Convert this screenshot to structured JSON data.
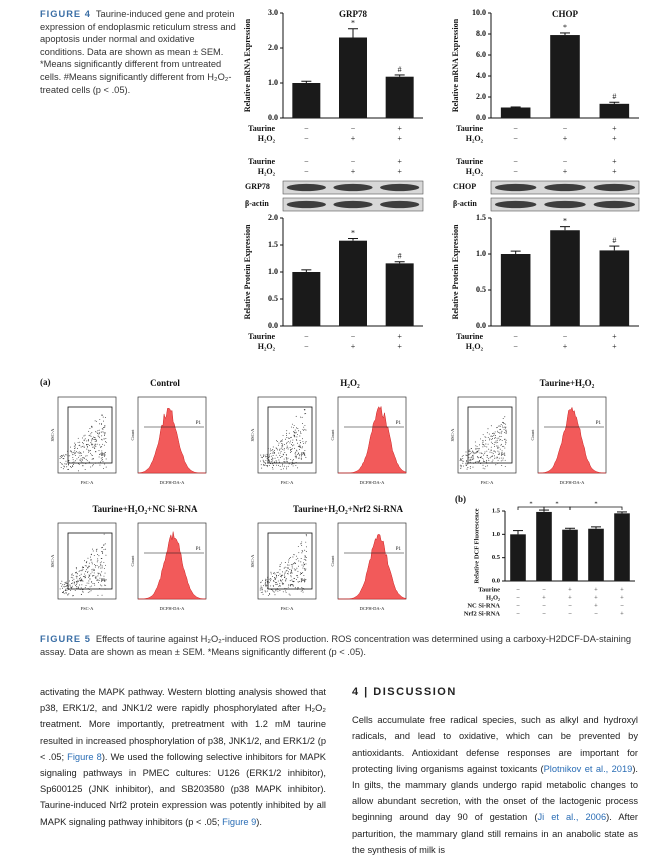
{
  "figure4": {
    "label": "FIGURE 4",
    "caption": "Taurine-induced gene and protein expression of endoplasmic reticulum stress and apoptosis under normal and oxidative conditions. Data are shown as mean ± SEM. *Means significantly different from untreated cells. #Means significantly different from H₂O₂-treated cells (p < .05).",
    "charts": [
      {
        "type": "bar",
        "title": "GRP78",
        "ylabel": "Relative mRNA Expression",
        "ylim": [
          0,
          3
        ],
        "yticks": [
          {
            "value": 0,
            "label": "0.0"
          },
          {
            "value": 1,
            "label": "1.0"
          },
          {
            "value": 2,
            "label": "2.0"
          },
          {
            "value": 3,
            "label": "3.0"
          }
        ],
        "values": [
          1.0,
          2.3,
          1.18
        ],
        "errors": [
          0.05,
          0.25,
          0.05
        ],
        "color": "#1a1a1a",
        "annotations": [
          {
            "bar": 1,
            "text": "*"
          },
          {
            "bar": 2,
            "text": "#"
          }
        ],
        "conditions": [
          {
            "name": "Taurine",
            "values": [
              "−",
              "−",
              "+"
            ]
          },
          {
            "name": "H₂O₂",
            "values": [
              "−",
              "+",
              "+"
            ]
          }
        ]
      },
      {
        "type": "bar",
        "title": "CHOP",
        "ylabel": "Relative mRNA Expression",
        "ylim": [
          0,
          10
        ],
        "yticks": [
          {
            "value": 0,
            "label": "0.0"
          },
          {
            "value": 2,
            "label": "2.0"
          },
          {
            "value": 4,
            "label": "4.0"
          },
          {
            "value": 6,
            "label": "6.0"
          },
          {
            "value": 8,
            "label": "8.0"
          },
          {
            "value": 10,
            "label": "10.0"
          }
        ],
        "values": [
          1.0,
          7.9,
          1.35
        ],
        "errors": [
          0.05,
          0.2,
          0.15
        ],
        "color": "#1a1a1a",
        "annotations": [
          {
            "bar": 1,
            "text": "*"
          },
          {
            "bar": 2,
            "text": "#"
          }
        ],
        "conditions": [
          {
            "name": "Taurine",
            "values": [
              "−",
              "−",
              "+"
            ]
          },
          {
            "name": "H₂O₂",
            "values": [
              "−",
              "+",
              "+"
            ]
          }
        ]
      },
      {
        "type": "bar",
        "ylabel": "Relative Protein Expression",
        "ylim": [
          0,
          2
        ],
        "yticks": [
          {
            "value": 0,
            "label": "0.0"
          },
          {
            "value": 0.5,
            "label": "0.5"
          },
          {
            "value": 1,
            "label": "1.0"
          },
          {
            "value": 1.5,
            "label": "1.5"
          },
          {
            "value": 2,
            "label": "2.0"
          }
        ],
        "values": [
          1.0,
          1.58,
          1.16
        ],
        "errors": [
          0.04,
          0.04,
          0.03
        ],
        "color": "#1a1a1a",
        "annotations": [
          {
            "bar": 1,
            "text": "*"
          },
          {
            "bar": 2,
            "text": "#"
          }
        ],
        "conditions": [
          {
            "name": "Taurine",
            "values": [
              "−",
              "−",
              "+"
            ]
          },
          {
            "name": "H₂O₂",
            "values": [
              "−",
              "+",
              "+"
            ]
          }
        ]
      },
      {
        "type": "bar",
        "ylabel": "Relative Protein Expression",
        "ylim": [
          0,
          1.5
        ],
        "yticks": [
          {
            "value": 0,
            "label": "0.0"
          },
          {
            "value": 0.5,
            "label": "0.5"
          },
          {
            "value": 1,
            "label": "1.0"
          },
          {
            "value": 1.5,
            "label": "1.5"
          }
        ],
        "values": [
          1.0,
          1.33,
          1.05
        ],
        "errors": [
          0.04,
          0.05,
          0.06
        ],
        "color": "#1a1a1a",
        "annotations": [
          {
            "bar": 1,
            "text": "*"
          },
          {
            "bar": 2,
            "text": "#"
          }
        ],
        "conditions": [
          {
            "name": "Taurine",
            "values": [
              "−",
              "−",
              "+"
            ]
          },
          {
            "name": "H₂O₂",
            "values": [
              "−",
              "+",
              "+"
            ]
          }
        ]
      }
    ],
    "blots": [
      {
        "conditions": [
          {
            "name": "Taurine",
            "values": [
              "−",
              "−",
              "+"
            ]
          },
          {
            "name": "H₂O₂",
            "values": [
              "−",
              "+",
              "+"
            ]
          }
        ],
        "bands": [
          "GRP78",
          "β-actin"
        ]
      },
      {
        "conditions": [
          {
            "name": "Taurine",
            "values": [
              "−",
              "−",
              "+"
            ]
          },
          {
            "name": "H₂O₂",
            "values": [
              "−",
              "+",
              "+"
            ]
          }
        ],
        "bands": [
          "CHOP",
          "β-actin"
        ]
      }
    ]
  },
  "figure5": {
    "label": "FIGURE 5",
    "caption": "Effects of taurine against H₂O₂-induced ROS production. ROS concentration was determined using a carboxy-H2DCF-DA-staining assay. Data are shown as mean ± SEM. *Means significantly different (p < .05).",
    "panel_a": "(a)",
    "panel_b": "(b)",
    "flow": {
      "scatter_x": "FSC-A",
      "scatter_y": "SSC-A",
      "gate": "P1",
      "hist_x": "DCFH-DA-A",
      "hist_y": "Count",
      "panels": [
        "Control",
        "H₂O₂",
        "Taurine+H₂O₂",
        "Taurine+H₂O₂+NC Si-RNA",
        "Taurine+H₂O₂+Nrf2 Si-RNA"
      ]
    },
    "chart": {
      "type": "bar",
      "ylabel": "Relative DCF Fluorescence",
      "ylim": [
        0,
        1.5
      ],
      "yticks": [
        {
          "value": 0,
          "label": "0.0"
        },
        {
          "value": 0.5,
          "label": "0.5"
        },
        {
          "value": 1,
          "label": "1.0"
        },
        {
          "value": 1.5,
          "label": "1.5"
        }
      ],
      "values": [
        1.0,
        1.48,
        1.1,
        1.12,
        1.45
      ],
      "errors": [
        0.08,
        0.04,
        0.03,
        0.04,
        0.03
      ],
      "color": "#1a1a1a",
      "brackets": [
        {
          "from": 0,
          "to": 1,
          "text": "*"
        },
        {
          "from": 1,
          "to": 2,
          "text": "*"
        },
        {
          "from": 2,
          "to": 4,
          "text": "*"
        }
      ],
      "conditions": [
        {
          "name": "Taurine",
          "values": [
            "−",
            "−",
            "+",
            "+",
            "+"
          ]
        },
        {
          "name": "H₂O₂",
          "values": [
            "−",
            "+",
            "+",
            "+",
            "+"
          ]
        },
        {
          "name": "NC Si-RNA",
          "values": [
            "−",
            "−",
            "−",
            "+",
            "−"
          ]
        },
        {
          "name": "Nrf2 Si-RNA",
          "values": [
            "−",
            "−",
            "−",
            "−",
            "+"
          ]
        }
      ]
    }
  },
  "body": {
    "left": [
      {
        "text": "activating the MAPK pathway. Western blotting analysis showed that p38, ERK1/2, and JNK1/2 were rapidly phosphorylated after H₂O₂ treatment. More importantly, pretreatment with 1.2 mM taurine resulted in increased phosphorylation of p38, JNK1/2, and ERK1/2 (p < .05; "
      },
      {
        "text": "Figure 8",
        "link": true
      },
      {
        "text": "). We used the following selective inhibitors for MAPK signaling pathways in PMEC cultures: U126 (ERK1/2 inhibitor), Sp600125 (JNK inhibitor), and SB203580 (p38 MAPK inhibitor). Taurine-induced Nrf2 protein expression was potently inhibited by all MAPK signaling pathway inhibitors (p < .05; "
      },
      {
        "text": "Figure 9",
        "link": true
      },
      {
        "text": ")."
      }
    ],
    "heading": "4 | DISCUSSION",
    "right": [
      {
        "text": "Cells accumulate free radical species, such as alkyl and hydroxyl radicals, and lead to oxidative, which can be prevented by antioxidants. Antioxidant defense responses are important for protecting living organisms against toxicants ("
      },
      {
        "text": "Plotnikov et al., 2019",
        "link": true
      },
      {
        "text": "). In gilts, the mammary glands undergo rapid metabolic changes to allow abundant secretion, with the onset of the lactogenic process beginning around day 90 of gestation ("
      },
      {
        "text": "Ji et al., 2006",
        "link": true
      },
      {
        "text": "). After parturition, the mammary gland still remains in an anabolic state as the synthesis of milk is"
      }
    ]
  }
}
